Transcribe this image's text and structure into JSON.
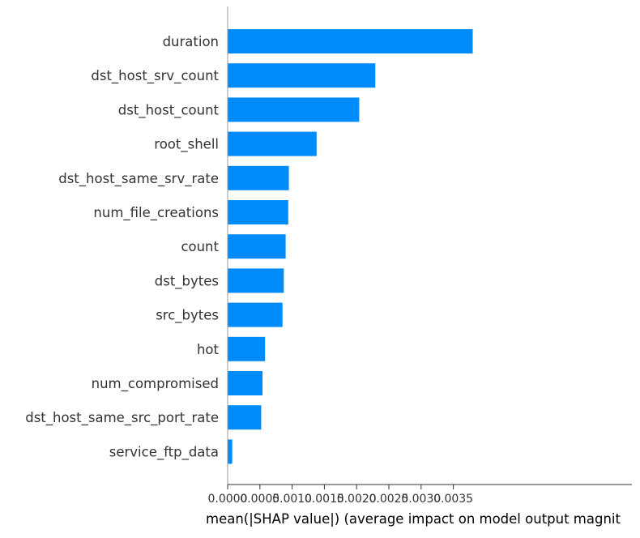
{
  "chart_data": {
    "type": "bar",
    "orientation": "horizontal",
    "categories": [
      "duration",
      "dst_host_srv_count",
      "dst_host_count",
      "root_shell",
      "dst_host_same_srv_rate",
      "num_file_creations",
      "count",
      "dst_bytes",
      "src_bytes",
      "hot",
      "num_compromised",
      "dst_host_same_src_port_rate",
      "service_ftp_data"
    ],
    "values": [
      0.0038,
      0.00229,
      0.00204,
      0.00138,
      0.00095,
      0.00094,
      0.0009,
      0.00087,
      0.00085,
      0.00058,
      0.00054,
      0.00052,
      7e-05
    ],
    "xlabel": "mean(|SHAP value|) (average impact on model output magnit",
    "ylabel": "",
    "title": "",
    "xlim": [
      0,
      0.00395
    ],
    "x_ticks": [
      0.0,
      0.0005,
      0.001,
      0.0015,
      0.002,
      0.0025,
      0.003,
      0.0035
    ],
    "x_tick_labels": [
      "0.0000",
      "0.0005",
      "0.0010",
      "0.0015",
      "0.0020",
      "0.0025",
      "0.0030",
      "0.0035"
    ],
    "bar_color": "#008bfb",
    "grid": false,
    "legend": "none"
  }
}
